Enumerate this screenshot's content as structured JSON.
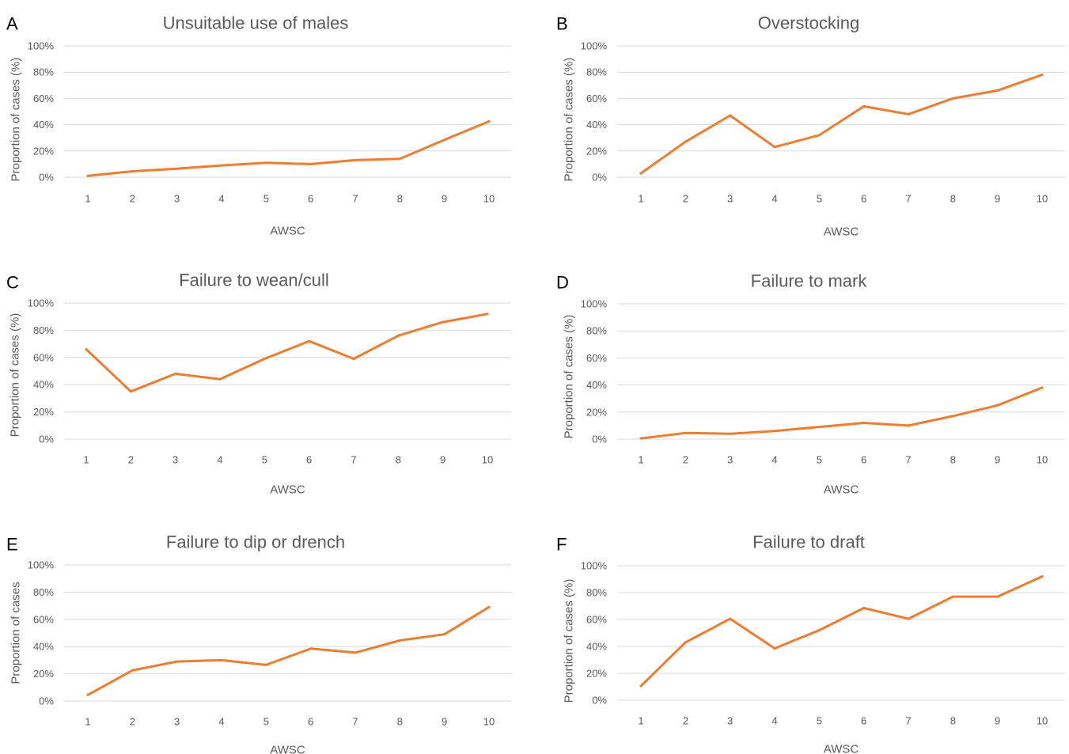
{
  "chart_data": [
    {
      "panel": "A",
      "type": "line",
      "title": "Unsuitable use of males",
      "xlabel": "AWSC",
      "ylabel": "Proportion of cases (%)",
      "categories": [
        "1",
        "2",
        "3",
        "4",
        "5",
        "6",
        "7",
        "8",
        "9",
        "10"
      ],
      "yticks": [
        "0%",
        "20%",
        "40%",
        "60%",
        "80%",
        "100%"
      ],
      "ylim": [
        0,
        100
      ],
      "grid": true,
      "series": [
        {
          "values": [
            1,
            4.5,
            6.5,
            9,
            11,
            10,
            13,
            14,
            28.5,
            42.5
          ],
          "color": "#ED7D31"
        }
      ]
    },
    {
      "panel": "B",
      "type": "line",
      "title": "Overstocking",
      "xlabel": "AWSC",
      "ylabel": "Proportion of cases (%)",
      "categories": [
        "1",
        "2",
        "3",
        "4",
        "5",
        "6",
        "7",
        "8",
        "9",
        "10"
      ],
      "yticks": [
        "0%",
        "20%",
        "40%",
        "60%",
        "80%",
        "100%"
      ],
      "ylim": [
        0,
        100
      ],
      "grid": true,
      "series": [
        {
          "values": [
            3,
            27,
            47,
            23,
            32,
            54,
            48,
            60,
            66,
            78
          ],
          "color": "#ED7D31"
        }
      ]
    },
    {
      "panel": "C",
      "type": "line",
      "title": "Failure to wean/cull",
      "xlabel": "AWSC",
      "ylabel": "Proportion of cases (%)",
      "categories": [
        "1",
        "2",
        "3",
        "4",
        "5",
        "6",
        "7",
        "8",
        "9",
        "10"
      ],
      "yticks": [
        "0%",
        "20%",
        "40%",
        "60%",
        "80%",
        "100%"
      ],
      "ylim": [
        0,
        100
      ],
      "grid": true,
      "series": [
        {
          "values": [
            66,
            35,
            48,
            44,
            59,
            72,
            59,
            76,
            86,
            92
          ],
          "color": "#ED7D31"
        }
      ]
    },
    {
      "panel": "D",
      "type": "line",
      "title": "Failure to mark",
      "xlabel": "AWSC",
      "ylabel": "Proportion of cases (%)",
      "categories": [
        "1",
        "2",
        "3",
        "4",
        "5",
        "6",
        "7",
        "8",
        "9",
        "10"
      ],
      "yticks": [
        "0%",
        "20%",
        "40%",
        "60%",
        "80%",
        "100%"
      ],
      "ylim": [
        0,
        100
      ],
      "grid": true,
      "series": [
        {
          "values": [
            0.5,
            4.5,
            4,
            6,
            9,
            12,
            10,
            17,
            25,
            38
          ],
          "color": "#ED7D31"
        }
      ]
    },
    {
      "panel": "E",
      "type": "line",
      "title": "Failure to dip or drench",
      "xlabel": "AWSC",
      "ylabel": "Proportion of cases",
      "categories": [
        "1",
        "2",
        "3",
        "4",
        "5",
        "6",
        "7",
        "8",
        "9",
        "10"
      ],
      "yticks": [
        "0%",
        "20%",
        "40%",
        "60%",
        "80%",
        "100%"
      ],
      "ylim": [
        0,
        100
      ],
      "grid": true,
      "series": [
        {
          "values": [
            4.5,
            22.5,
            29,
            30,
            26.5,
            38.5,
            35.5,
            44.5,
            49,
            69
          ],
          "color": "#ED7D31"
        }
      ]
    },
    {
      "panel": "F",
      "type": "line",
      "title": "Failure to draft",
      "xlabel": "AWSC",
      "ylabel": "Proportion of cases (%)",
      "categories": [
        "1",
        "2",
        "3",
        "4",
        "5",
        "6",
        "7",
        "8",
        "9",
        "10"
      ],
      "yticks": [
        "0%",
        "20%",
        "40%",
        "60%",
        "80%",
        "100%"
      ],
      "ylim": [
        0,
        100
      ],
      "grid": true,
      "series": [
        {
          "values": [
            10.5,
            43,
            60.5,
            38.5,
            52,
            68.5,
            60.5,
            77,
            77,
            92
          ],
          "color": "#ED7D31"
        }
      ]
    }
  ]
}
